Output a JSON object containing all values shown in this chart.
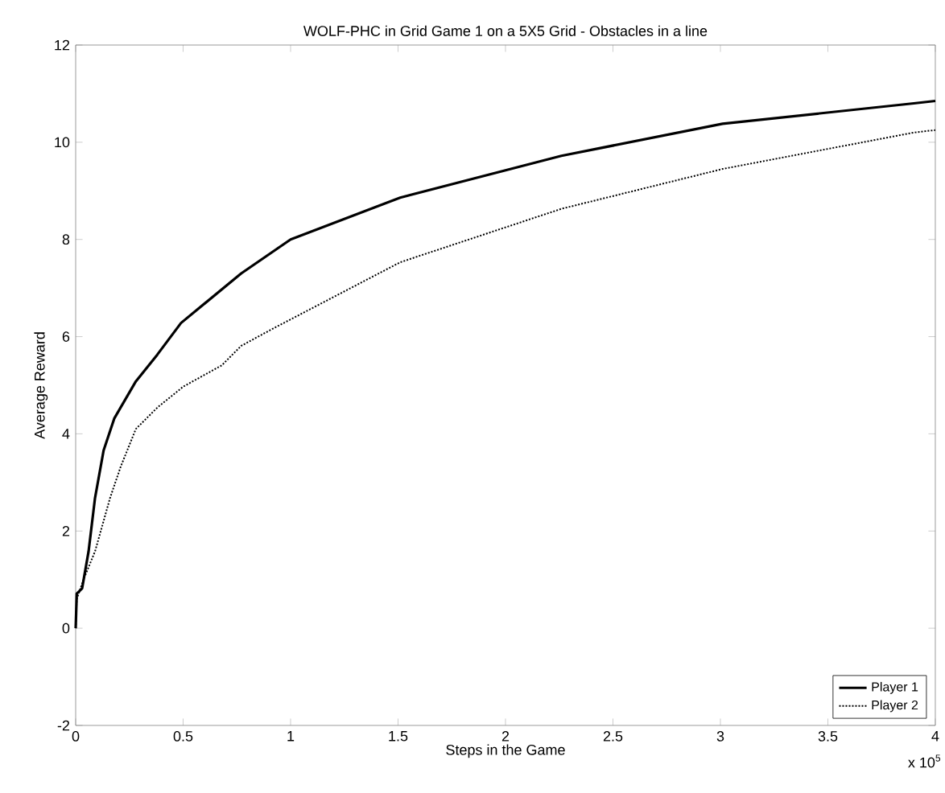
{
  "chart_data": {
    "type": "line",
    "title": "WOLF-PHC in Grid Game 1 on a 5X5 Grid - Obstacles in a line",
    "xlabel": "Steps in the Game",
    "ylabel": "Average Reward",
    "annotations": [
      "x 10$^{5}$"
    ],
    "xlim": [
      0,
      4
    ],
    "ylim": [
      -2,
      12
    ],
    "xticks": [
      0,
      0.5,
      1,
      1.5,
      2,
      2.5,
      3,
      3.5,
      4
    ],
    "yticks": [
      -2,
      0,
      2,
      4,
      6,
      8,
      10,
      12
    ],
    "legend": "bottom right",
    "grid": false,
    "series": [
      {
        "name": "Player 1",
        "color": "#000000",
        "line_style": "solid",
        "x": [
          0,
          0.005,
          0.03,
          0.06,
          0.09,
          0.13,
          0.18,
          0.28,
          0.38,
          0.49,
          0.77,
          1.0,
          1.51,
          2.26,
          3.01,
          3.9,
          4
        ],
        "values": [
          0,
          0.71,
          0.82,
          1.58,
          2.68,
          3.66,
          4.32,
          5.08,
          5.63,
          6.28,
          7.3,
          8.0,
          8.86,
          9.72,
          10.38,
          10.8,
          10.85
        ]
      },
      {
        "name": "Player 2",
        "color": "#000000",
        "line_style": "dotted",
        "x": [
          0,
          0.005,
          0.04,
          0.09,
          0.16,
          0.21,
          0.28,
          0.38,
          0.5,
          0.68,
          0.77,
          0.92,
          1.51,
          2.26,
          3.01,
          3.9,
          4
        ],
        "values": [
          0,
          0.6,
          1.04,
          1.58,
          2.68,
          3.33,
          4.1,
          4.54,
          4.97,
          5.41,
          5.81,
          6.17,
          7.53,
          8.63,
          9.45,
          10.2,
          10.25
        ]
      }
    ]
  }
}
